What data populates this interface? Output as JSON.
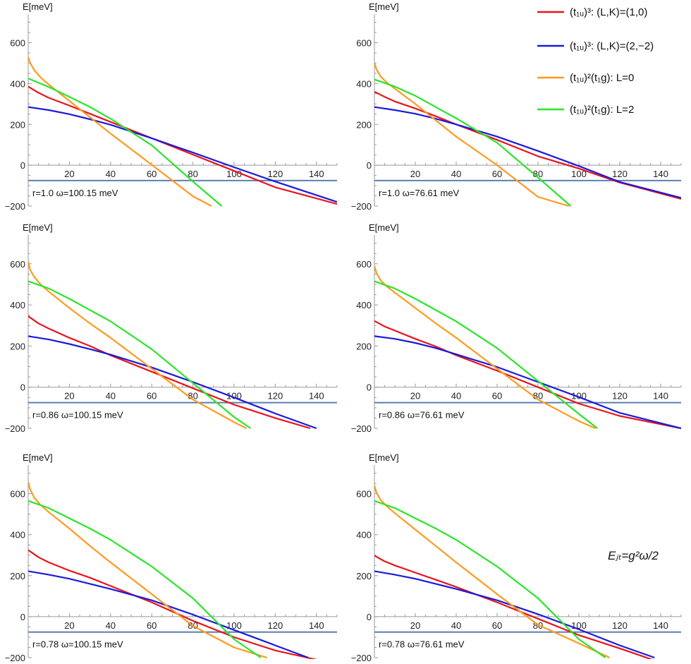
{
  "legend": [
    {
      "label": "(t₁ᵤ)³: (L,K)=(1,0)",
      "color": "#e8141b"
    },
    {
      "label": "(t₁ᵤ)³: (L,K)=(2,−2)",
      "color": "#1a1adb"
    },
    {
      "label": "(t₁ᵤ)²(t₁g): L=0",
      "color": "#ff9a1e"
    },
    {
      "label": "(t₁ᵤ)²(t₁g): L=2",
      "color": "#29e629"
    }
  ],
  "formula": "Eⱼₜ=g²ω/2",
  "chart_data": [
    {
      "type": "line",
      "ylabel": "E[meV]",
      "annotation": "r=1.0  ω=100.15 meV",
      "xlim": [
        0,
        150
      ],
      "ylim": [
        -200,
        740
      ],
      "xticks": [
        20,
        40,
        60,
        80,
        100,
        120,
        140
      ],
      "yticks": [
        -200,
        0,
        200,
        400,
        600
      ],
      "reference_line": -75,
      "series": [
        {
          "color": "#e8141b",
          "x": [
            0,
            5,
            10,
            20,
            30,
            40,
            60,
            80,
            100,
            120,
            150
          ],
          "y": [
            385,
            355,
            330,
            292,
            252,
            212,
            132,
            52,
            -28,
            -108,
            -190
          ]
        },
        {
          "color": "#1a1adb",
          "x": [
            0,
            10,
            20,
            30,
            40,
            60,
            80,
            100,
            120,
            150
          ],
          "y": [
            285,
            270,
            250,
            225,
            198,
            132,
            62,
            -10,
            -80,
            -180
          ]
        },
        {
          "color": "#ff9a1e",
          "x": [
            0,
            1,
            3,
            6,
            10,
            20,
            30,
            40,
            60,
            80,
            89
          ],
          "y": [
            530,
            500,
            465,
            430,
            395,
            315,
            235,
            155,
            2,
            -152,
            -200
          ]
        },
        {
          "color": "#29e629",
          "x": [
            0,
            10,
            20,
            30,
            40,
            60,
            80,
            94
          ],
          "y": [
            425,
            383,
            335,
            285,
            228,
            98,
            -80,
            -200
          ]
        }
      ]
    },
    {
      "type": "line",
      "ylabel": "E[meV]",
      "annotation": "r=1.0  ω=76.61 meV",
      "xlim": [
        0,
        150
      ],
      "ylim": [
        -200,
        740
      ],
      "xticks": [
        20,
        40,
        60,
        80,
        100,
        120,
        140
      ],
      "yticks": [
        -200,
        0,
        200,
        400,
        600
      ],
      "reference_line": -75,
      "series": [
        {
          "color": "#e8141b",
          "x": [
            0,
            5,
            10,
            20,
            30,
            40,
            60,
            80,
            100,
            120,
            150
          ],
          "y": [
            360,
            335,
            312,
            278,
            240,
            200,
            124,
            44,
            -16,
            -85,
            -165
          ]
        },
        {
          "color": "#1a1adb",
          "x": [
            0,
            10,
            20,
            30,
            40,
            60,
            80,
            100,
            120,
            150
          ],
          "y": [
            285,
            270,
            252,
            228,
            200,
            140,
            70,
            -4,
            -82,
            -160
          ]
        },
        {
          "color": "#ff9a1e",
          "x": [
            0,
            1,
            3,
            6,
            10,
            20,
            30,
            40,
            60,
            80,
            95
          ],
          "y": [
            500,
            470,
            435,
            405,
            375,
            300,
            220,
            140,
            0,
            -155,
            -200
          ]
        },
        {
          "color": "#29e629",
          "x": [
            0,
            10,
            20,
            30,
            40,
            60,
            80,
            96
          ],
          "y": [
            420,
            385,
            340,
            285,
            230,
            110,
            -60,
            -200
          ]
        }
      ]
    },
    {
      "type": "line",
      "ylabel": "E[meV]",
      "annotation": "r=0.86  ω=100.15 meV",
      "xlim": [
        0,
        150
      ],
      "ylim": [
        -200,
        740
      ],
      "xticks": [
        20,
        40,
        60,
        80,
        100,
        120,
        140
      ],
      "yticks": [
        -200,
        0,
        200,
        400,
        600
      ],
      "reference_line": -75,
      "series": [
        {
          "color": "#e8141b",
          "x": [
            0,
            5,
            10,
            20,
            30,
            40,
            60,
            80,
            100,
            120,
            137
          ],
          "y": [
            345,
            310,
            285,
            240,
            200,
            155,
            75,
            -5,
            -85,
            -150,
            -200
          ]
        },
        {
          "color": "#1a1adb",
          "x": [
            0,
            10,
            20,
            30,
            40,
            60,
            80,
            100,
            120,
            140
          ],
          "y": [
            248,
            232,
            210,
            185,
            158,
            96,
            25,
            -50,
            -128,
            -200
          ]
        },
        {
          "color": "#ff9a1e",
          "x": [
            0,
            1,
            3,
            6,
            10,
            20,
            30,
            40,
            60,
            80,
            100,
            106
          ],
          "y": [
            610,
            570,
            535,
            500,
            465,
            385,
            310,
            240,
            90,
            -60,
            -170,
            -200
          ]
        },
        {
          "color": "#29e629",
          "x": [
            0,
            10,
            20,
            30,
            40,
            60,
            80,
            100,
            108
          ],
          "y": [
            515,
            480,
            430,
            375,
            320,
            185,
            20,
            -145,
            -200
          ]
        }
      ]
    },
    {
      "type": "line",
      "ylabel": "E[meV]",
      "annotation": "r=0.86  ω=76.61 meV",
      "xlim": [
        0,
        150
      ],
      "ylim": [
        -200,
        740
      ],
      "xticks": [
        20,
        40,
        60,
        80,
        100,
        120,
        140
      ],
      "yticks": [
        -200,
        0,
        200,
        400,
        600
      ],
      "reference_line": -75,
      "series": [
        {
          "color": "#e8141b",
          "x": [
            0,
            5,
            10,
            20,
            30,
            40,
            60,
            80,
            100,
            120,
            150
          ],
          "y": [
            322,
            295,
            275,
            235,
            198,
            155,
            80,
            0,
            -80,
            -140,
            -200
          ]
        },
        {
          "color": "#1a1adb",
          "x": [
            0,
            10,
            20,
            30,
            40,
            60,
            80,
            100,
            120,
            150
          ],
          "y": [
            248,
            235,
            215,
            190,
            160,
            98,
            25,
            -48,
            -125,
            -200
          ]
        },
        {
          "color": "#ff9a1e",
          "x": [
            0,
            1,
            3,
            6,
            10,
            20,
            30,
            40,
            60,
            80,
            100,
            108
          ],
          "y": [
            590,
            555,
            520,
            490,
            460,
            385,
            310,
            240,
            90,
            -60,
            -165,
            -200
          ]
        },
        {
          "color": "#29e629",
          "x": [
            0,
            10,
            20,
            30,
            40,
            60,
            80,
            100,
            109
          ],
          "y": [
            515,
            480,
            430,
            375,
            320,
            190,
            30,
            -130,
            -200
          ]
        }
      ]
    },
    {
      "type": "line",
      "ylabel": "E[meV]",
      "annotation": "r=0.78  ω=100.15 meV",
      "xlim": [
        0,
        150
      ],
      "ylim": [
        -200,
        740
      ],
      "xticks": [
        20,
        40,
        60,
        80,
        100,
        120,
        140
      ],
      "yticks": [
        -200,
        0,
        200,
        400,
        600
      ],
      "reference_line": -75,
      "series": [
        {
          "color": "#e8141b",
          "x": [
            0,
            5,
            10,
            20,
            30,
            40,
            60,
            80,
            100,
            120,
            140
          ],
          "y": [
            325,
            290,
            265,
            225,
            190,
            150,
            70,
            -20,
            -100,
            -165,
            -210
          ]
        },
        {
          "color": "#1a1adb",
          "x": [
            0,
            10,
            20,
            30,
            40,
            60,
            80,
            100,
            120,
            136
          ],
          "y": [
            222,
            205,
            185,
            160,
            135,
            80,
            10,
            -65,
            -140,
            -200
          ]
        },
        {
          "color": "#ff9a1e",
          "x": [
            0,
            1,
            3,
            6,
            10,
            20,
            30,
            40,
            60,
            80,
            100,
            116
          ],
          "y": [
            655,
            620,
            580,
            545,
            510,
            430,
            345,
            265,
            110,
            -45,
            -150,
            -200
          ]
        },
        {
          "color": "#29e629",
          "x": [
            0,
            10,
            20,
            30,
            40,
            60,
            80,
            100,
            113
          ],
          "y": [
            565,
            530,
            480,
            430,
            375,
            245,
            90,
            -110,
            -200
          ]
        }
      ]
    },
    {
      "type": "line",
      "ylabel": "E[meV]",
      "annotation": "r=0.78  ω=76.61 meV",
      "xlim": [
        0,
        150
      ],
      "ylim": [
        -200,
        740
      ],
      "xticks": [
        20,
        40,
        60,
        80,
        100,
        120,
        140
      ],
      "yticks": [
        -200,
        0,
        200,
        400,
        600
      ],
      "reference_line": -75,
      "series": [
        {
          "color": "#e8141b",
          "x": [
            0,
            5,
            10,
            20,
            30,
            40,
            60,
            80,
            100,
            120,
            136
          ],
          "y": [
            298,
            270,
            250,
            215,
            180,
            145,
            70,
            -10,
            -90,
            -155,
            -210
          ]
        },
        {
          "color": "#1a1adb",
          "x": [
            0,
            10,
            20,
            30,
            40,
            60,
            80,
            100,
            120,
            137
          ],
          "y": [
            222,
            205,
            185,
            160,
            135,
            80,
            12,
            -62,
            -140,
            -200
          ]
        },
        {
          "color": "#ff9a1e",
          "x": [
            0,
            1,
            3,
            6,
            10,
            20,
            30,
            40,
            60,
            80,
            100,
            115
          ],
          "y": [
            640,
            605,
            570,
            540,
            505,
            425,
            345,
            265,
            110,
            -40,
            -130,
            -200
          ]
        },
        {
          "color": "#29e629",
          "x": [
            0,
            10,
            20,
            30,
            40,
            60,
            80,
            100,
            113
          ],
          "y": [
            565,
            530,
            480,
            430,
            375,
            245,
            90,
            -110,
            -200
          ]
        }
      ]
    }
  ]
}
